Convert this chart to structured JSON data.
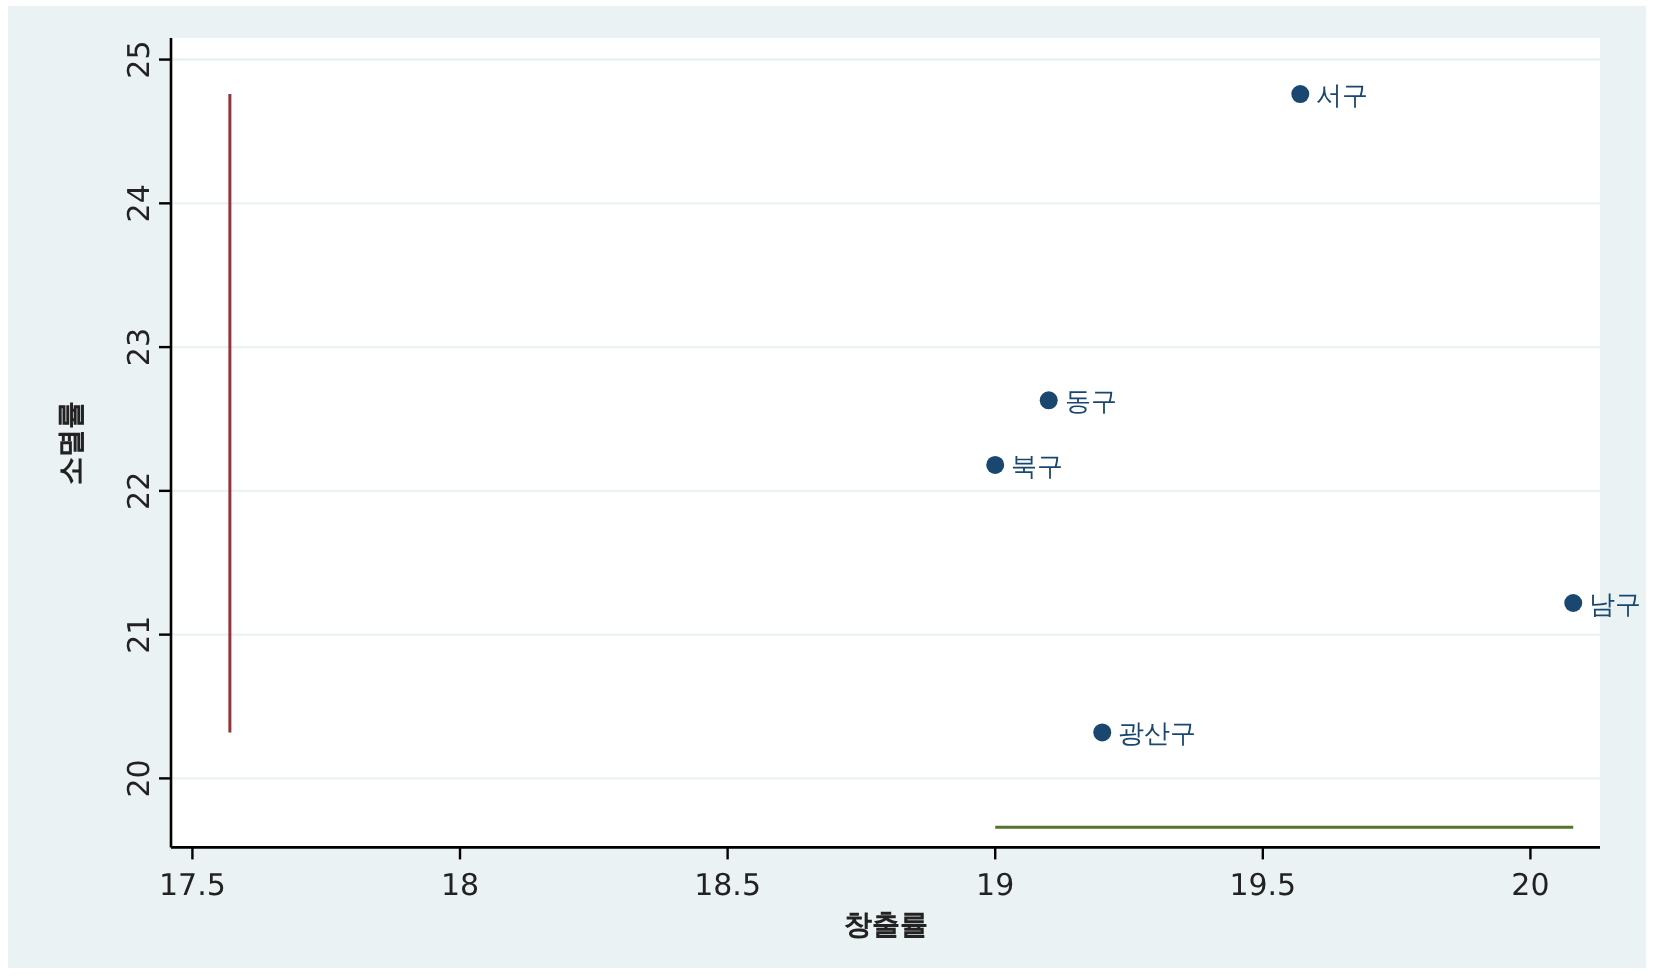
{
  "chart_data": {
    "type": "scatter",
    "xlabel": "창출률",
    "ylabel": "소멸률",
    "xlim": [
      17.46,
      20.13
    ],
    "ylim": [
      19.52,
      25.15
    ],
    "xticks": [
      17.5,
      18,
      18.5,
      19,
      19.5,
      20
    ],
    "yticks": [
      20,
      21,
      22,
      23,
      24,
      25
    ],
    "grid": "y",
    "series": [
      {
        "color": "#1a476f",
        "marker": "circle",
        "x": [
          19.57,
          19.1,
          19.0,
          20.08,
          19.2
        ],
        "values": [
          24.76,
          22.63,
          22.18,
          21.22,
          20.32
        ]
      },
      {
        "type": "line",
        "marker": "none",
        "color": "#90353b",
        "x": [
          17.57,
          17.57
        ],
        "values": [
          20.32,
          24.76
        ]
      },
      {
        "type": "line",
        "marker": "none",
        "color": "#55752f",
        "x": [
          19.0,
          20.08
        ],
        "values": [
          19.66,
          19.66
        ]
      }
    ],
    "annotations": [
      {
        "text": "서구",
        "x": 19.57,
        "y": 24.76
      },
      {
        "text": "동구",
        "x": 19.1,
        "y": 22.63
      },
      {
        "text": "북구",
        "x": 19.0,
        "y": 22.18
      },
      {
        "text": "남구",
        "x": 20.08,
        "y": 21.22
      },
      {
        "text": "광산구",
        "x": 19.2,
        "y": 20.32
      }
    ]
  }
}
